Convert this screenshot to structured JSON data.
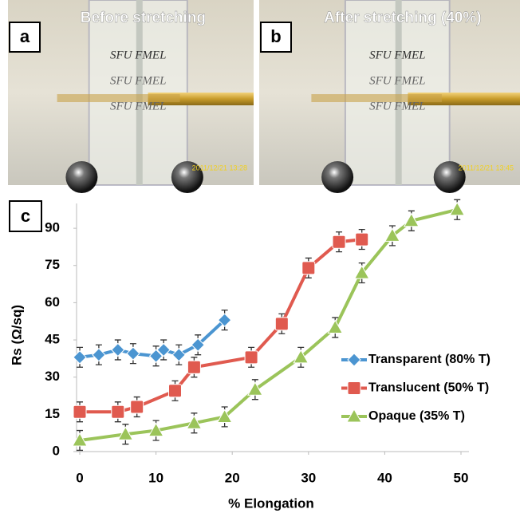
{
  "photos": [
    {
      "label": "a",
      "caption": "Before stretching",
      "labels": [
        "SFU FMEL",
        "SFU FMEL",
        "SFU FMEL"
      ],
      "timestamp": "2011/12/21 13:28"
    },
    {
      "label": "b",
      "caption": "After stretching (40%)",
      "labels": [
        "SFU FMEL",
        "SFU FMEL",
        "SFU FMEL"
      ],
      "timestamp": "2011/12/21 13:45"
    }
  ],
  "chart_data": {
    "type": "line",
    "panel_label": "c",
    "x_label": "% Elongation",
    "y_label": "Rs (Ω/sq)",
    "xlim": [
      0,
      50
    ],
    "xticks": [
      0,
      10,
      20,
      30,
      40,
      50
    ],
    "ylim": [
      0,
      100
    ],
    "yticks": [
      0,
      15,
      30,
      45,
      60,
      75,
      90
    ],
    "legend": "right",
    "series": [
      {
        "name": "Transparent (80% T)",
        "color": "#4b95d1",
        "marker": "diamond",
        "x": [
          0,
          2.5,
          5,
          7,
          10,
          11,
          13,
          15.5,
          19
        ],
        "values": [
          38,
          39,
          41,
          39.5,
          38.5,
          41,
          39,
          43,
          53
        ],
        "error": 4
      },
      {
        "name": "Translucent (50% T)",
        "color": "#e05a4f",
        "marker": "square",
        "x": [
          0,
          5,
          7.5,
          12.5,
          15,
          22.5,
          26.5,
          30,
          34,
          37
        ],
        "values": [
          16,
          16,
          18,
          24.5,
          34,
          38,
          51.5,
          74,
          84.5,
          85.5
        ],
        "error": 4
      },
      {
        "name": "Opaque (35% T)",
        "color": "#9bc45a",
        "marker": "triangle",
        "x": [
          0,
          6,
          10,
          15,
          19,
          23,
          29,
          33.5,
          37,
          41,
          43.5,
          49.5
        ],
        "values": [
          4.5,
          7,
          8.5,
          11.5,
          14,
          25,
          38,
          50,
          72,
          87,
          93,
          97.5
        ],
        "error": 4
      }
    ]
  }
}
